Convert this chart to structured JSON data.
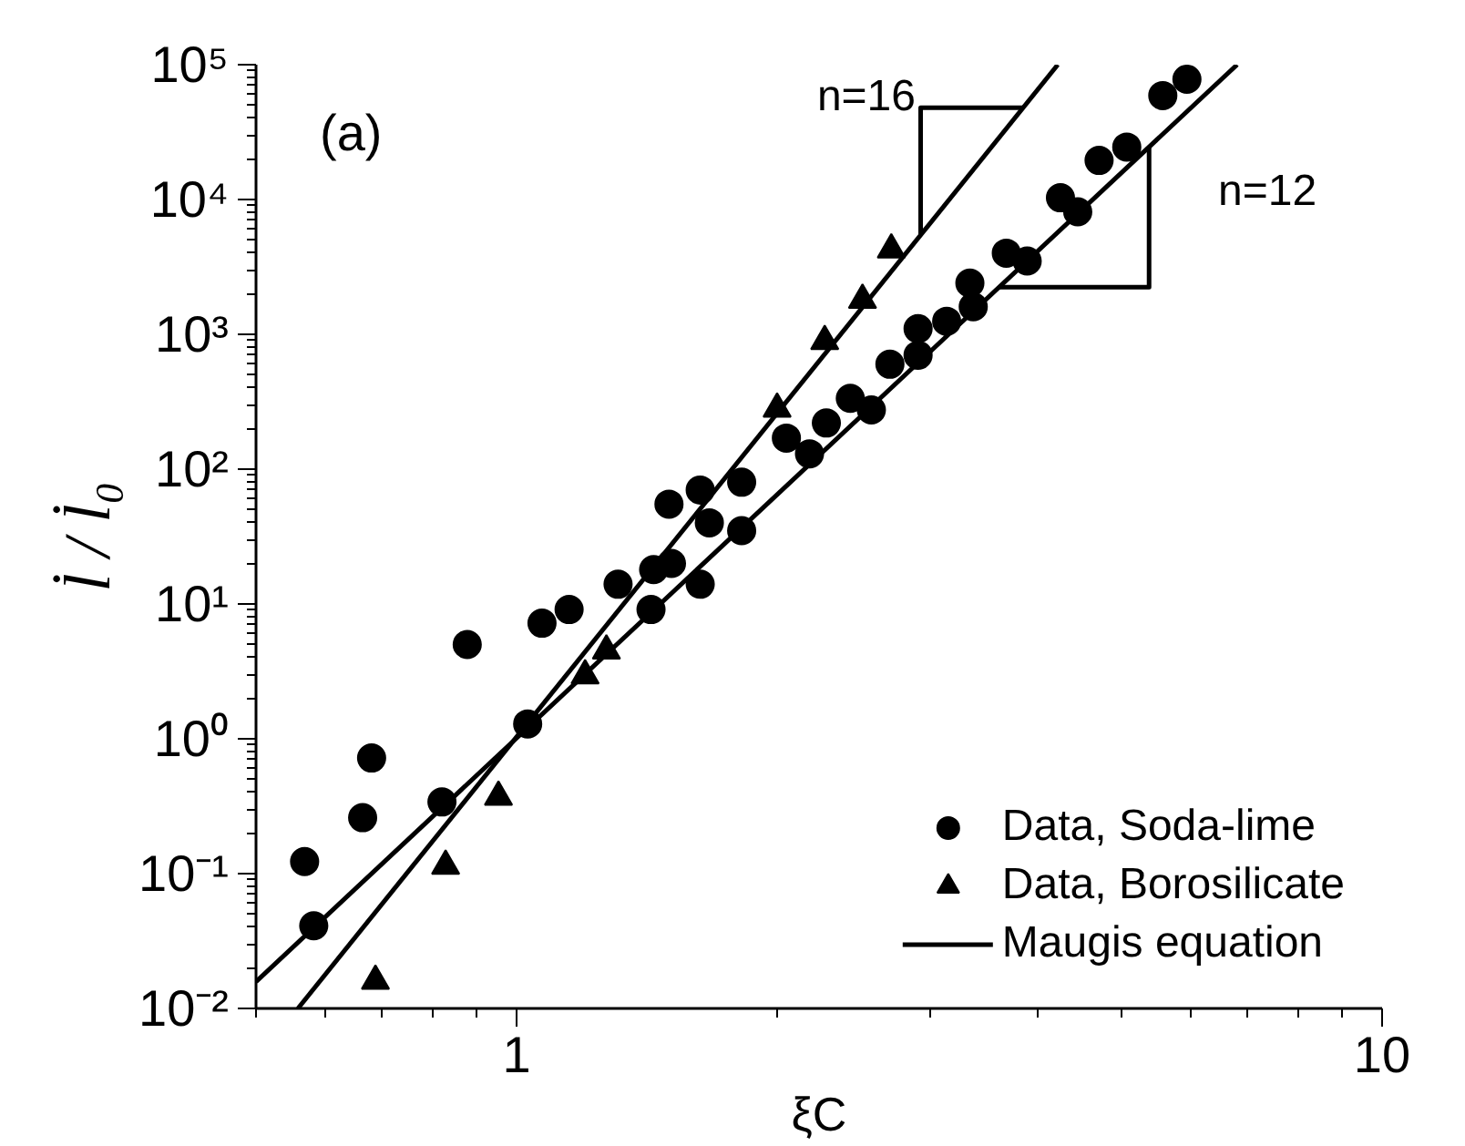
{
  "chart_data": {
    "type": "scatter",
    "xlabel": "ξC",
    "ylabel": "l̇ / l̇₀",
    "log": "xy",
    "grid": false,
    "legend": "bottom right",
    "xlim": [
      0.5,
      10
    ],
    "ylim": [
      0.01,
      100000
    ],
    "xticks": [
      1,
      10
    ],
    "yticks": [
      {
        "value": 0.01,
        "label": "10⁻²"
      },
      {
        "value": 0.1,
        "label": "10⁻¹"
      },
      {
        "value": 1,
        "label": "10⁰"
      },
      {
        "value": 10,
        "label": "10¹"
      },
      {
        "value": 100,
        "label": "10²"
      },
      {
        "value": 1000,
        "label": "10³"
      },
      {
        "value": 10000,
        "label": "10⁴"
      },
      {
        "value": 100000,
        "label": "10⁵"
      }
    ],
    "annotations": [
      "(a)",
      "n=16",
      "n=12"
    ],
    "series": [
      {
        "name": "Data, Soda-lime",
        "marker": "circle",
        "color": "#000000",
        "x": [
          0.569,
          0.583,
          0.664,
          0.68,
          0.82,
          0.877,
          1.03,
          1.07,
          1.15,
          1.31,
          1.43,
          1.44,
          1.51,
          1.63,
          1.5,
          1.63,
          1.67,
          1.82,
          1.82,
          2.05,
          2.18,
          2.28,
          2.43,
          2.57,
          2.7,
          2.91,
          2.91,
          3.14,
          3.34,
          3.37,
          3.68,
          3.89,
          4.25,
          4.45,
          4.71,
          5.07,
          5.58,
          5.95
        ],
        "values": [
          0.123,
          0.041,
          0.26,
          0.72,
          0.34,
          5.0,
          1.29,
          7.2,
          9.1,
          14,
          9.1,
          18,
          20,
          14,
          55,
          70,
          40,
          80,
          35,
          170,
          130,
          220,
          335,
          275,
          600,
          1100,
          700,
          1250,
          2400,
          1600,
          4000,
          3500,
          10300,
          8100,
          19500,
          24500,
          59000,
          78000
        ]
      },
      {
        "name": "Data, Borosilicate",
        "marker": "triangle",
        "color": "#000000",
        "x": [
          0.687,
          0.828,
          0.953,
          1.2,
          1.27,
          2.0,
          2.27,
          2.51,
          2.71
        ],
        "values": [
          0.016,
          0.114,
          0.37,
          2.95,
          4.5,
          280,
          890,
          1800,
          4250
        ]
      },
      {
        "name": "Maugis equation",
        "type": "line",
        "line_style": "solid",
        "color": "#000000",
        "x": [
          0.5,
          6.8
        ],
        "values": [
          0.0158,
          100000
        ]
      },
      {
        "type": "line",
        "line_style": "solid",
        "color": "#000000",
        "x": [
          0.559,
          4.22
        ],
        "values": [
          0.01,
          100000
        ]
      },
      {
        "type": "line",
        "line_style": "solid",
        "color": "#000000",
        "x": [
          3.85,
          2.93,
          2.93
        ],
        "values": [
          48000,
          48000,
          5500
        ]
      },
      {
        "type": "line",
        "line_style": "solid",
        "color": "#000000",
        "x": [
          3.61,
          5.38,
          5.38
        ],
        "values": [
          2240,
          2240,
          24500
        ]
      }
    ]
  }
}
